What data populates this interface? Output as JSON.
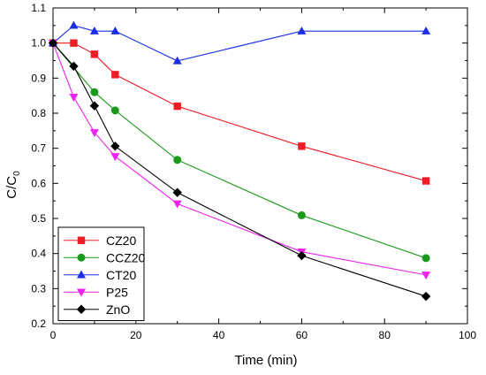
{
  "chart_data": {
    "type": "line",
    "xlabel": "Time (min)",
    "ylabel_main": "C/C",
    "ylabel_sub": "0",
    "xlim": [
      0,
      100
    ],
    "ylim": [
      0.2,
      1.1
    ],
    "xticks": [
      0,
      20,
      40,
      60,
      80,
      100
    ],
    "yticks": [
      0.2,
      0.3,
      0.4,
      0.5,
      0.6,
      0.7,
      0.8,
      0.9,
      1.0,
      1.1
    ],
    "xtick_labels": [
      "0",
      "20",
      "40",
      "60",
      "80",
      "100"
    ],
    "ytick_labels": [
      "0.2",
      "0.3",
      "0.4",
      "0.5",
      "0.6",
      "0.7",
      "0.8",
      "0.9",
      "1.0",
      "1.1"
    ],
    "grid": false,
    "legend_position": "bottom-left",
    "series": [
      {
        "name": "CZ20",
        "color": "#ee1c24",
        "marker": "square",
        "x": [
          0,
          5,
          10,
          15,
          30,
          60,
          90
        ],
        "y": [
          1.0,
          1.0,
          0.968,
          0.91,
          0.82,
          0.706,
          0.607
        ]
      },
      {
        "name": "CCZ20",
        "color": "#1a9a1a",
        "marker": "circle",
        "x": [
          0,
          10,
          15,
          30,
          60,
          90
        ],
        "y": [
          1.0,
          0.86,
          0.808,
          0.667,
          0.509,
          0.387
        ]
      },
      {
        "name": "CT20",
        "color": "#1a2ee6",
        "marker": "triangle-up",
        "x": [
          0,
          5,
          10,
          15,
          30,
          60,
          90
        ],
        "y": [
          1.0,
          1.05,
          1.034,
          1.034,
          0.949,
          1.034,
          1.034
        ]
      },
      {
        "name": "P25",
        "color": "#ee22ee",
        "marker": "triangle-down",
        "x": [
          0,
          5,
          10,
          15,
          30,
          60,
          90
        ],
        "y": [
          1.0,
          0.846,
          0.745,
          0.677,
          0.542,
          0.405,
          0.339
        ]
      },
      {
        "name": "ZnO",
        "color": "#000000",
        "marker": "diamond",
        "x": [
          0,
          5,
          10,
          15,
          30,
          60,
          90
        ],
        "y": [
          1.0,
          0.934,
          0.821,
          0.706,
          0.574,
          0.394,
          0.278
        ]
      }
    ]
  }
}
